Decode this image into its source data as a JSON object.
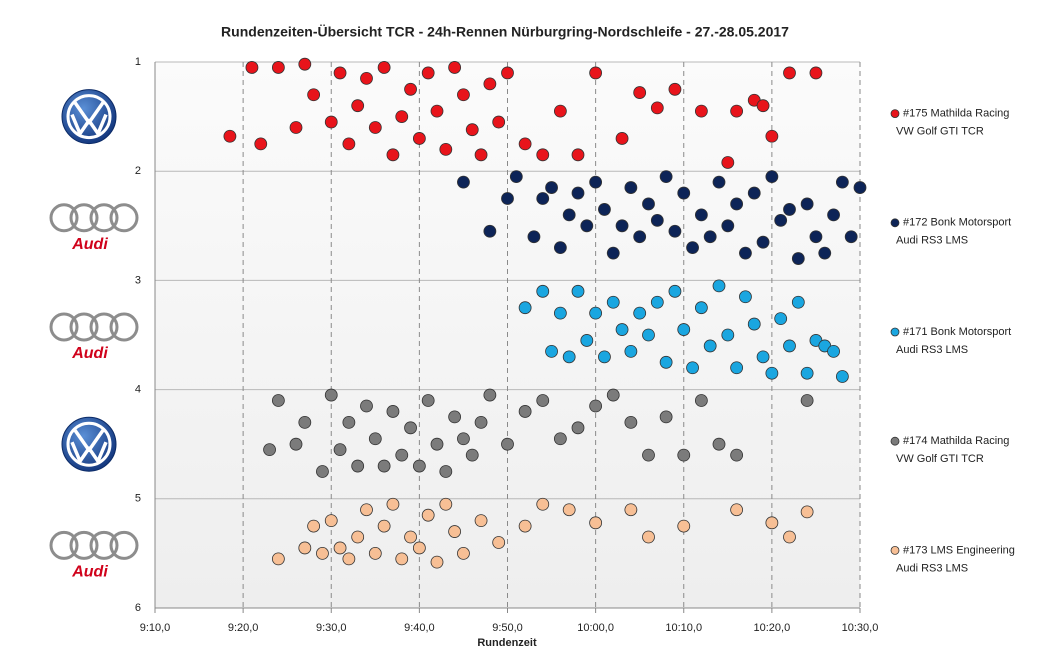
{
  "chart_data": {
    "type": "scatter",
    "title": "Rundenzeiten-Übersicht  TCR  - 24h-Rennen  Nürburgring-Nordschleife  - 27.-28.05.2017",
    "xlabel": "Rundenzeit",
    "xlim": [
      550,
      630
    ],
    "xticks": [
      {
        "value": 550,
        "label": "9:10,0"
      },
      {
        "value": 560,
        "label": "9:20,0"
      },
      {
        "value": 570,
        "label": "9:30,0"
      },
      {
        "value": 580,
        "label": "9:40,0"
      },
      {
        "value": 590,
        "label": "9:50,0"
      },
      {
        "value": 600,
        "label": "10:00,0"
      },
      {
        "value": 610,
        "label": "10:10,0"
      },
      {
        "value": 620,
        "label": "10:20,0"
      },
      {
        "value": 630,
        "label": "10:30,0"
      }
    ],
    "ylim": [
      6,
      1
    ],
    "yticks": [
      1,
      2,
      3,
      4,
      5,
      6
    ],
    "grid": true,
    "series": [
      {
        "name": "#175 Mathilda Racing",
        "car": "VW Golf GTI TCR",
        "color": "#e8141b",
        "x": [
          558.5,
          561,
          562,
          564,
          566,
          567,
          568,
          570,
          571,
          572,
          573,
          574,
          575,
          576,
          577,
          578,
          579,
          580,
          581,
          582,
          583,
          584,
          585,
          586,
          587,
          588,
          589,
          590,
          592,
          594,
          596,
          598,
          600,
          603,
          605,
          607,
          609,
          612,
          615,
          616,
          618,
          619,
          620,
          622,
          625
        ],
        "values": [
          1.68,
          1.05,
          1.75,
          1.05,
          1.6,
          1.02,
          1.3,
          1.55,
          1.1,
          1.75,
          1.4,
          1.15,
          1.6,
          1.05,
          1.85,
          1.5,
          1.25,
          1.7,
          1.1,
          1.45,
          1.8,
          1.05,
          1.3,
          1.62,
          1.85,
          1.2,
          1.55,
          1.1,
          1.75,
          1.85,
          1.45,
          1.85,
          1.1,
          1.7,
          1.28,
          1.42,
          1.25,
          1.45,
          1.92,
          1.45,
          1.35,
          1.4,
          1.68,
          1.1,
          1.1
        ]
      },
      {
        "name": "#172 Bonk Motorsport",
        "car": "Audi RS3 LMS",
        "brand": "Audi",
        "color": "#0d2457",
        "x": [
          585,
          588,
          590,
          591,
          593,
          594,
          595,
          596,
          597,
          598,
          599,
          600,
          601,
          602,
          603,
          604,
          605,
          606,
          607,
          608,
          609,
          610,
          611,
          612,
          613,
          614,
          615,
          616,
          617,
          618,
          619,
          620,
          621,
          622,
          623,
          624,
          625,
          626,
          627,
          628,
          629,
          630
        ],
        "values": [
          2.1,
          2.55,
          2.25,
          2.05,
          2.6,
          2.25,
          2.15,
          2.7,
          2.4,
          2.2,
          2.5,
          2.1,
          2.35,
          2.75,
          2.5,
          2.15,
          2.6,
          2.3,
          2.45,
          2.05,
          2.55,
          2.2,
          2.7,
          2.4,
          2.6,
          2.1,
          2.5,
          2.3,
          2.75,
          2.2,
          2.65,
          2.05,
          2.45,
          2.35,
          2.8,
          2.3,
          2.6,
          2.75,
          2.4,
          2.1,
          2.6,
          2.15
        ]
      },
      {
        "name": "#171 Bonk Motorsport",
        "car": "Audi RS3 LMS",
        "brand": "Audi",
        "color": "#1aa6e0",
        "x": [
          592,
          594,
          595,
          596,
          597,
          598,
          599,
          600,
          601,
          602,
          603,
          604,
          605,
          606,
          607,
          608,
          609,
          610,
          611,
          612,
          613,
          614,
          615,
          616,
          617,
          618,
          619,
          620,
          621,
          622,
          623,
          624,
          625,
          626,
          627,
          628
        ],
        "values": [
          3.25,
          3.1,
          3.65,
          3.3,
          3.7,
          3.1,
          3.55,
          3.3,
          3.7,
          3.2,
          3.45,
          3.65,
          3.3,
          3.5,
          3.2,
          3.75,
          3.1,
          3.45,
          3.8,
          3.25,
          3.6,
          3.05,
          3.5,
          3.8,
          3.15,
          3.4,
          3.7,
          3.85,
          3.35,
          3.6,
          3.2,
          3.85,
          3.55,
          3.6,
          3.65,
          3.88
        ]
      },
      {
        "name": "#174 Mathilda Racing",
        "car": "VW Golf GTI TCR",
        "color": "#7b7b7b",
        "x": [
          563,
          564,
          566,
          567,
          569,
          570,
          571,
          572,
          573,
          574,
          575,
          576,
          577,
          578,
          579,
          580,
          581,
          582,
          583,
          584,
          585,
          586,
          587,
          588,
          590,
          592,
          594,
          596,
          598,
          600,
          602,
          604,
          606,
          608,
          610,
          612,
          614,
          616,
          624
        ],
        "values": [
          4.55,
          4.1,
          4.5,
          4.3,
          4.75,
          4.05,
          4.55,
          4.3,
          4.7,
          4.15,
          4.45,
          4.7,
          4.2,
          4.6,
          4.35,
          4.7,
          4.1,
          4.5,
          4.75,
          4.25,
          4.45,
          4.6,
          4.3,
          4.05,
          4.5,
          4.2,
          4.1,
          4.45,
          4.35,
          4.15,
          4.05,
          4.3,
          4.6,
          4.25,
          4.6,
          4.1,
          4.5,
          4.6,
          4.1
        ]
      },
      {
        "name": "#173 LMS Engineering",
        "car": "Audi RS3 LMS",
        "brand": "Audi",
        "color": "#f7bf95",
        "x": [
          564,
          567,
          568,
          569,
          570,
          571,
          572,
          573,
          574,
          575,
          576,
          577,
          578,
          579,
          580,
          581,
          582,
          583,
          584,
          585,
          587,
          589,
          592,
          594,
          597,
          600,
          604,
          606,
          610,
          616,
          620,
          622,
          624
        ],
        "values": [
          5.55,
          5.45,
          5.25,
          5.5,
          5.2,
          5.45,
          5.55,
          5.35,
          5.1,
          5.5,
          5.25,
          5.05,
          5.55,
          5.35,
          5.45,
          5.15,
          5.58,
          5.05,
          5.3,
          5.5,
          5.2,
          5.4,
          5.25,
          5.05,
          5.1,
          5.22,
          5.1,
          5.35,
          5.25,
          5.1,
          5.22,
          5.35,
          5.12
        ]
      }
    ]
  }
}
